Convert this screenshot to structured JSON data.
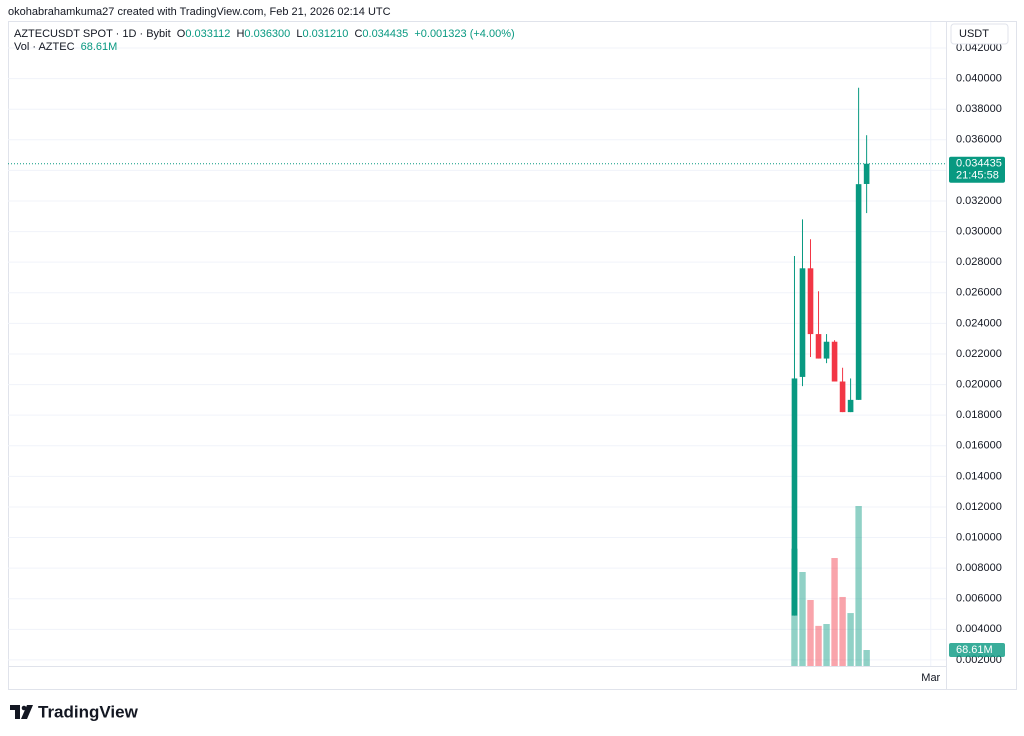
{
  "attribution": "okohabrahamkuma27 created with TradingView.com, Feb 21, 2026 02:14 UTC",
  "chart_data": {
    "type": "candlestick",
    "title": "AZTECUSDT SPOT · 1D · Bybit",
    "ohlc_header": {
      "o_label": "O",
      "o": "0.033112",
      "h_label": "H",
      "h": "0.036300",
      "l_label": "L",
      "l": "0.031210",
      "c_label": "C",
      "c": "0.034435",
      "change": "+0.001323 (+4.00%)"
    },
    "currency": "USDT",
    "x": [
      0,
      1,
      2,
      3,
      4,
      5,
      6,
      7,
      8,
      9
    ],
    "open": [
      0.0049,
      0.0205,
      0.0276,
      0.0233,
      0.0217,
      0.0228,
      0.0202,
      0.0182,
      0.019,
      0.033112
    ],
    "high": [
      0.0284,
      0.0308,
      0.0295,
      0.0261,
      0.0233,
      0.0229,
      0.0211,
      0.0204,
      0.0394,
      0.0363
    ],
    "low": [
      0.0049,
      0.0199,
      0.0218,
      0.0217,
      0.0214,
      0.0202,
      0.0182,
      0.0182,
      0.019,
      0.03121
    ],
    "close": [
      0.0204,
      0.0276,
      0.0233,
      0.0217,
      0.0228,
      0.0202,
      0.0182,
      0.019,
      0.0331,
      0.034435
    ],
    "up_color": "#089981",
    "down_color": "#f23645",
    "volume": {
      "name": "Vol · AZTEC",
      "values": [
        503000000,
        403000000,
        283000000,
        172000000,
        180000000,
        463000000,
        296000000,
        227000000,
        686000000,
        68610000
      ],
      "last_label": "68.61M"
    },
    "last_price_label": "0.034435",
    "countdown": "21:45:58",
    "xlim": [
      -98.1,
      18.9
    ],
    "xticks": [
      {
        "value": 17,
        "label": "Mar"
      }
    ],
    "ylim": [
      0.0001,
      0.0437
    ],
    "yticks": [
      {
        "value": 0.002,
        "label": "0.002000"
      },
      {
        "value": 0.004,
        "label": "0.004000"
      },
      {
        "value": 0.006,
        "label": "0.006000"
      },
      {
        "value": 0.008,
        "label": "0.008000"
      },
      {
        "value": 0.01,
        "label": "0.010000"
      },
      {
        "value": 0.012,
        "label": "0.012000"
      },
      {
        "value": 0.014,
        "label": "0.014000"
      },
      {
        "value": 0.016,
        "label": "0.016000"
      },
      {
        "value": 0.018,
        "label": "0.018000"
      },
      {
        "value": 0.02,
        "label": "0.020000"
      },
      {
        "value": 0.022,
        "label": "0.022000"
      },
      {
        "value": 0.024,
        "label": "0.024000"
      },
      {
        "value": 0.026,
        "label": "0.026000"
      },
      {
        "value": 0.028,
        "label": "0.028000"
      },
      {
        "value": 0.03,
        "label": "0.030000"
      },
      {
        "value": 0.032,
        "label": "0.032000"
      },
      {
        "value": 0.034,
        "label": "0.034000"
      },
      {
        "value": 0.036,
        "label": "0.036000"
      },
      {
        "value": 0.038,
        "label": "0.038000"
      },
      {
        "value": 0.04,
        "label": "0.040000"
      },
      {
        "value": 0.042,
        "label": "0.042000"
      }
    ],
    "grid": true
  },
  "logo": "TradingView"
}
